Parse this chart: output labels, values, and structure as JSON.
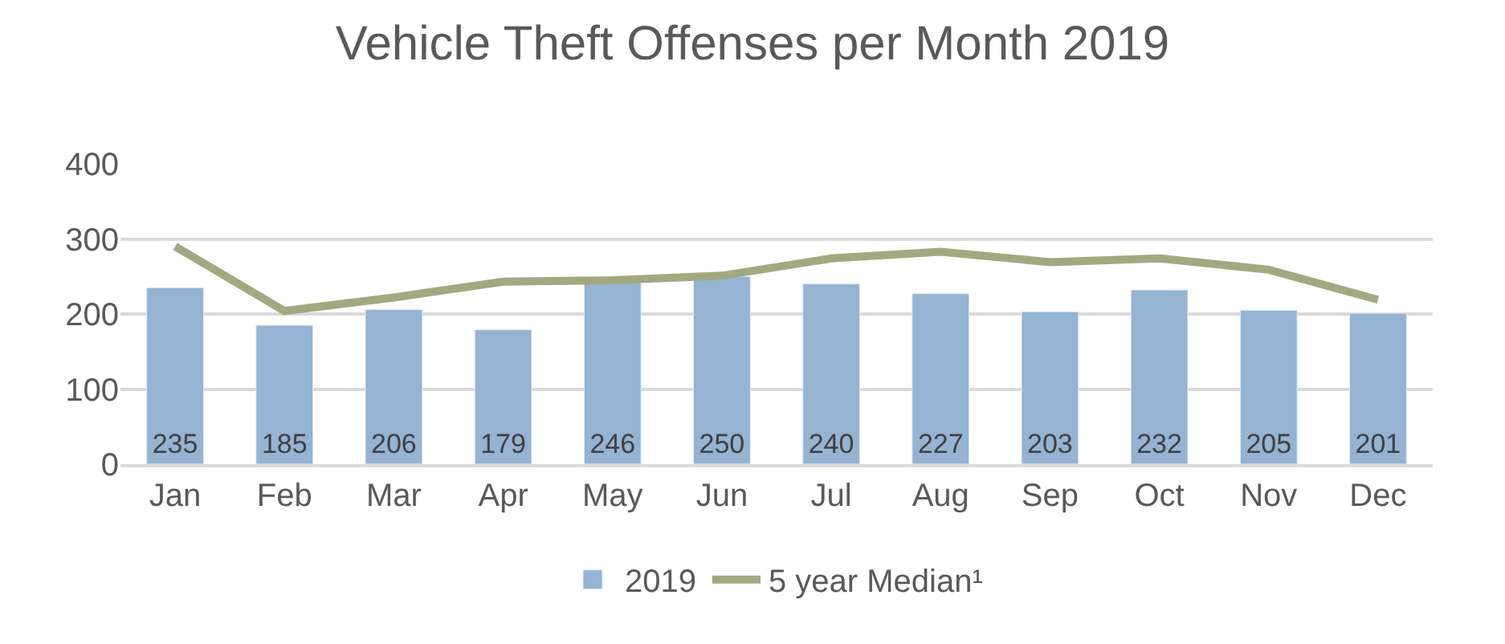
{
  "chart_data": {
    "type": "bar",
    "title": "Vehicle Theft Offenses per Month 2019",
    "categories": [
      "Jan",
      "Feb",
      "Mar",
      "Apr",
      "May",
      "Jun",
      "Jul",
      "Aug",
      "Sep",
      "Oct",
      "Nov",
      "Dec"
    ],
    "series": [
      {
        "name": "2019",
        "color": "#95b3d2",
        "values": [
          235,
          185,
          206,
          179,
          246,
          250,
          240,
          227,
          203,
          232,
          205,
          201
        ],
        "data_labels": true
      },
      {
        "name": "5 year Median¹",
        "type": "line",
        "color": "#a3a97f",
        "values": [
          290,
          204,
          222,
          243,
          245,
          251,
          274,
          283,
          269,
          274,
          259,
          219
        ]
      }
    ],
    "ylim": [
      0,
      400
    ],
    "yticks": [
      0,
      100,
      200,
      300,
      400
    ],
    "grid": "y",
    "legend": "bottom"
  }
}
